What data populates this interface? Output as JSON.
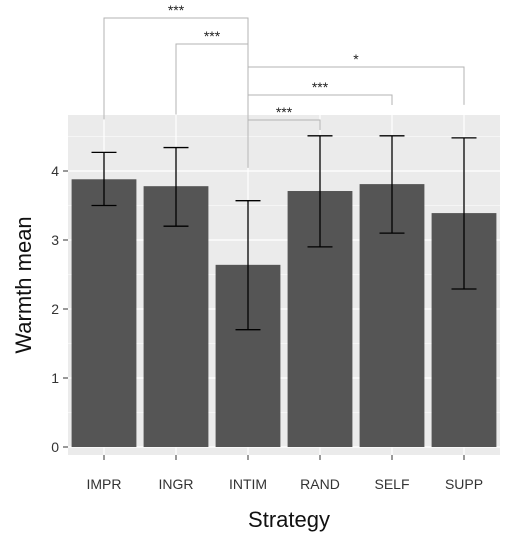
{
  "chart_data": {
    "type": "bar",
    "xlabel": "Strategy",
    "ylabel": "Warmth mean",
    "ylim": [
      0,
      4.6
    ],
    "yticks": [
      0,
      1,
      2,
      3,
      4
    ],
    "grid": true,
    "categories": [
      "IMPR",
      "INGR",
      "INTIM",
      "RAND",
      "SELF",
      "SUPP"
    ],
    "values": [
      3.88,
      3.78,
      2.64,
      3.71,
      3.81,
      3.39
    ],
    "error_low": [
      3.5,
      3.2,
      1.7,
      2.9,
      3.1,
      2.29
    ],
    "error_high": [
      4.27,
      4.34,
      3.57,
      4.51,
      4.51,
      4.48
    ],
    "significance": [
      {
        "from": "IMPR",
        "to": "INTIM",
        "label": "***"
      },
      {
        "from": "INGR",
        "to": "INTIM",
        "label": "***"
      },
      {
        "from": "INTIM",
        "to": "SUPP",
        "label": "*"
      },
      {
        "from": "INTIM",
        "to": "SELF",
        "label": "***"
      },
      {
        "from": "INTIM",
        "to": "RAND",
        "label": "***"
      }
    ],
    "colors": {
      "bar": "#555555",
      "panel": "#ebebeb",
      "grid": "#ffffff",
      "bracket": "#b3b3b3",
      "errorbar": "#000000"
    }
  }
}
